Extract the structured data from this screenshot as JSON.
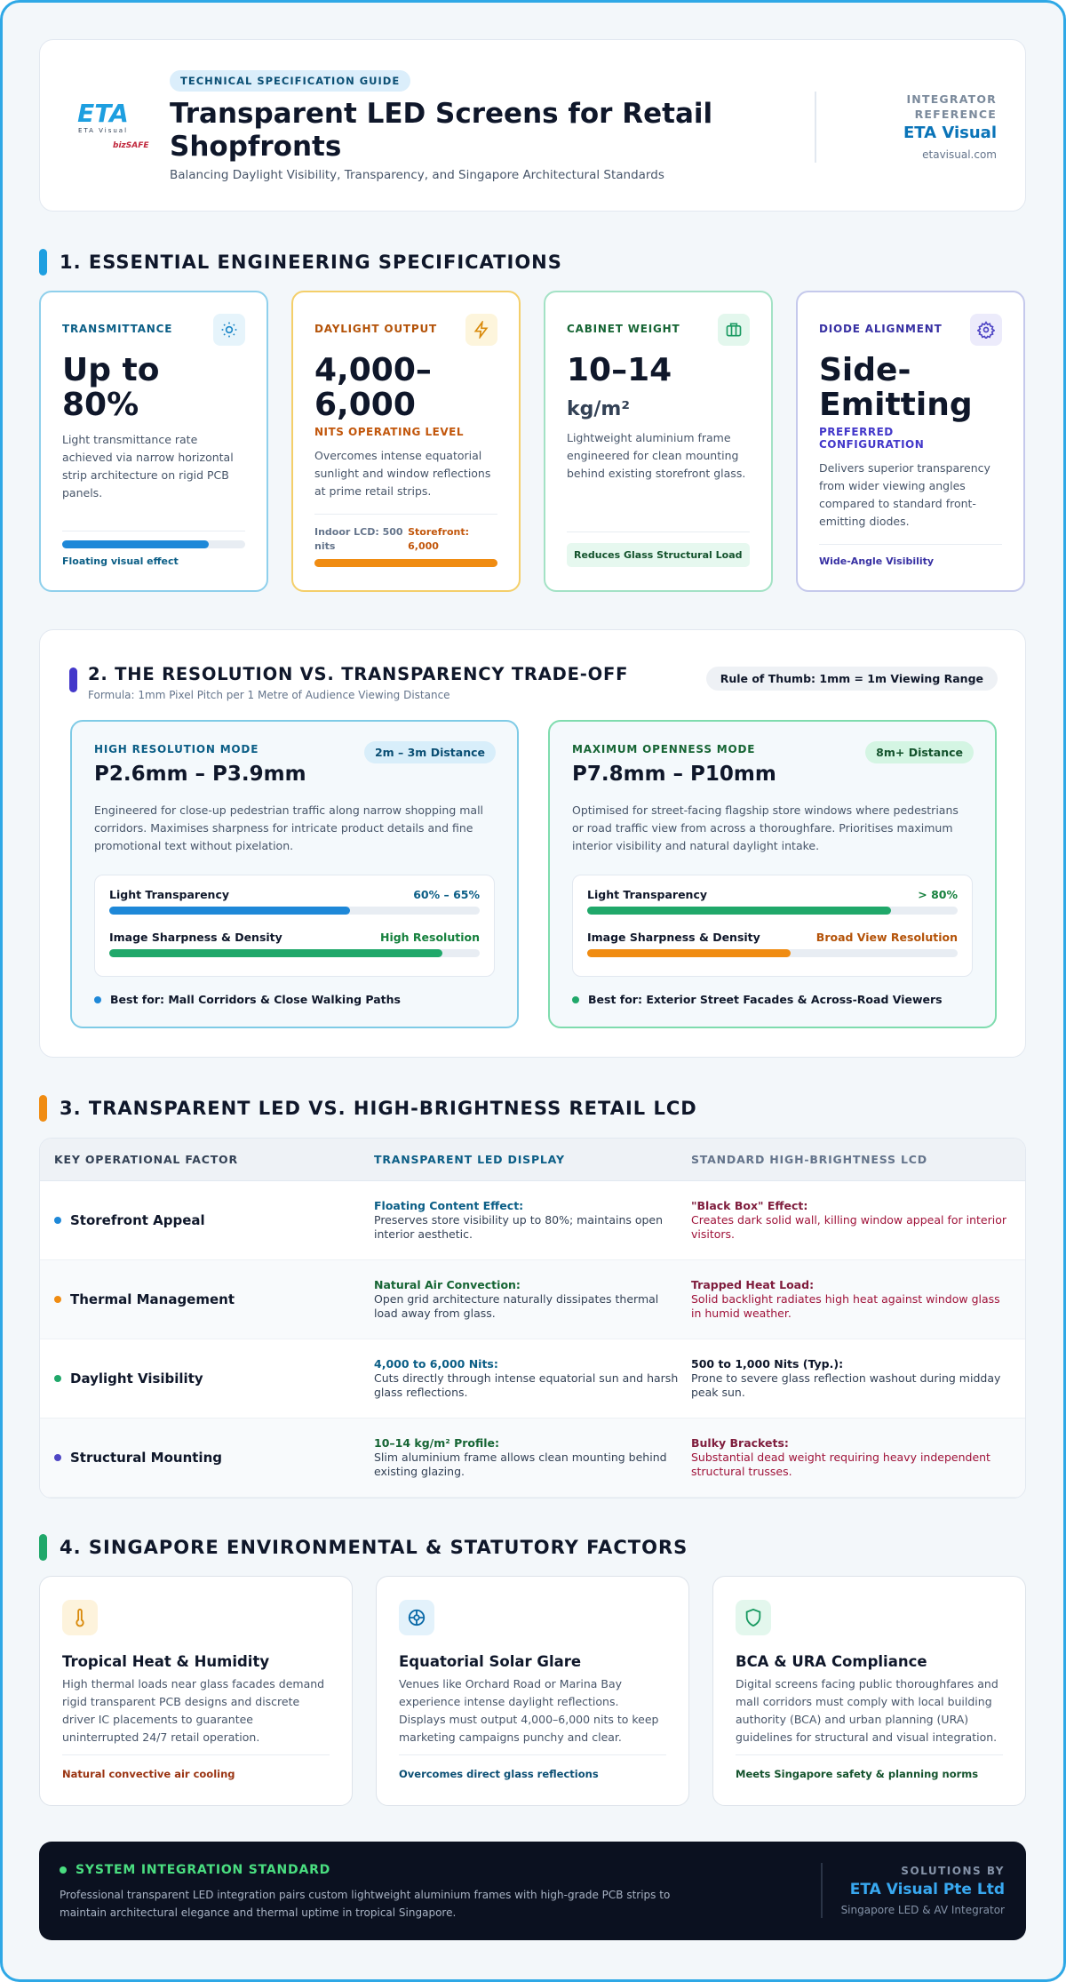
{
  "header": {
    "badge": "TECHNICAL SPECIFICATION GUIDE",
    "title": "Transparent LED Screens for Retail Shopfronts",
    "subtitle": "Balancing Daylight Visibility, Transparency, and Singapore Architectural Standards",
    "logo": {
      "brand": "ETA",
      "tagline": "ETA Visual",
      "mark": "bizSAFE"
    },
    "reference": {
      "label": "INTEGRATOR REFERENCE",
      "name": "ETA Visual",
      "url": "etavisual.com"
    }
  },
  "section1": {
    "heading": "1. ESSENTIAL ENGINEERING SPECIFICATIONS",
    "cards": [
      {
        "label": "TRANSMITTANCE",
        "value": "Up to 80%",
        "description": "Light transmittance rate achieved via narrow horizontal strip architecture on rigid PCB panels.",
        "footer": "Floating visual effect"
      },
      {
        "label": "DAYLIGHT OUTPUT",
        "value": "4,000–6,000",
        "sublabel": "NITS OPERATING LEVEL",
        "description": "Overcomes intense equatorial sunlight and window reflections at prime retail strips.",
        "compare": [
          "Indoor LCD: 500 nits",
          "Storefront: 6,000"
        ]
      },
      {
        "label": "CABINET WEIGHT",
        "value": "10–14",
        "unit": "kg/m²",
        "description": "Lightweight aluminium frame engineered for clean mounting behind existing storefront glass.",
        "footer": "Reduces Glass Structural Load"
      },
      {
        "label": "DIODE ALIGNMENT",
        "value": "Side-Emitting",
        "sublabel": "PREFERRED CONFIGURATION",
        "description": "Delivers superior transparency from wider viewing angles compared to standard front-emitting diodes.",
        "footer": "Wide-Angle Visibility"
      }
    ]
  },
  "section2": {
    "heading": "2. THE RESOLUTION VS. TRANSPARENCY TRADE-OFF",
    "formula": "Formula: 1mm Pixel Pitch per 1 Metre of Audience Viewing Distance",
    "rule": "Rule of Thumb: 1mm = 1m Viewing Range",
    "modes": [
      {
        "mode": "HIGH RESOLUTION MODE",
        "distance": "2m – 3m Distance",
        "range": "P2.6mm – P3.9mm",
        "description": "Engineered for close-up pedestrian traffic along narrow shopping mall corridors. Maximises sharpness for intricate product details and fine promotional text without pixelation.",
        "metrics": [
          {
            "name": "Light Transparency",
            "value": "60% – 65%"
          },
          {
            "name": "Image Sharpness & Density",
            "value": "High Resolution"
          }
        ],
        "best": "Best for: Mall Corridors & Close Walking Paths"
      },
      {
        "mode": "MAXIMUM OPENNESS MODE",
        "distance": "8m+ Distance",
        "range": "P7.8mm – P10mm",
        "description": "Optimised for street-facing flagship store windows where pedestrians or road traffic view from across a thoroughfare. Prioritises maximum interior visibility and natural daylight intake.",
        "metrics": [
          {
            "name": "Light Transparency",
            "value": "> 80%"
          },
          {
            "name": "Image Sharpness & Density",
            "value": "Broad View Resolution"
          }
        ],
        "best": "Best for: Exterior Street Facades & Across-Road Viewers"
      }
    ]
  },
  "section3": {
    "heading": "3. TRANSPARENT LED VS. HIGH-BRIGHTNESS RETAIL LCD",
    "columns": [
      "KEY OPERATIONAL FACTOR",
      "TRANSPARENT LED DISPLAY",
      "STANDARD HIGH-BRIGHTNESS LCD"
    ],
    "rows": [
      {
        "factor": "Storefront Appeal",
        "led": {
          "title": "Floating Content Effect:",
          "text": "Preserves store visibility up to 80%; maintains open interior aesthetic."
        },
        "lcd": {
          "title": "\"Black Box\" Effect:",
          "text": "Creates dark solid wall, killing window appeal for interior visitors."
        }
      },
      {
        "factor": "Thermal Management",
        "led": {
          "title": "Natural Air Convection:",
          "text": "Open grid architecture naturally dissipates thermal load away from glass."
        },
        "lcd": {
          "title": "Trapped Heat Load:",
          "text": "Solid backlight radiates high heat against window glass in humid weather."
        }
      },
      {
        "factor": "Daylight Visibility",
        "led": {
          "title": "4,000 to 6,000 Nits:",
          "text": "Cuts directly through intense equatorial sun and harsh glass reflections."
        },
        "lcd": {
          "title": "500 to 1,000 Nits (Typ.):",
          "text": "Prone to severe glass reflection washout during midday peak sun."
        }
      },
      {
        "factor": "Structural Mounting",
        "led": {
          "title": "10–14 kg/m² Profile:",
          "text": "Slim aluminium frame allows clean mounting behind existing glazing."
        },
        "lcd": {
          "title": "Bulky Brackets:",
          "text": "Substantial dead weight requiring heavy independent structural trusses."
        }
      }
    ]
  },
  "section4": {
    "heading": "4. SINGAPORE ENVIRONMENTAL & STATUTORY FACTORS",
    "cards": [
      {
        "title": "Tropical Heat & Humidity",
        "text": "High thermal loads near glass facades demand rigid transparent PCB designs and discrete driver IC placements to guarantee uninterrupted 24/7 retail operation.",
        "footer": "Natural convective air cooling"
      },
      {
        "title": "Equatorial Solar Glare",
        "text": "Venues like Orchard Road or Marina Bay experience intense daylight reflections. Displays must output 4,000–6,000 nits to keep marketing campaigns punchy and clear.",
        "footer": "Overcomes direct glass reflections"
      },
      {
        "title": "BCA & URA Compliance",
        "text": "Digital screens facing public thoroughfares and mall corridors must comply with local building authority (BCA) and urban planning (URA) guidelines for structural and visual integration.",
        "footer": "Meets Singapore safety & planning norms"
      }
    ]
  },
  "footer": {
    "label": "SYSTEM INTEGRATION STANDARD",
    "text": "Professional transparent LED integration pairs custom lightweight aluminium frames with high-grade PCB strips to maintain architectural elegance and thermal uptime in tropical Singapore.",
    "by_label": "SOLUTIONS BY",
    "company": "ETA Visual Pte Ltd",
    "tagline": "Singapore LED & AV Integrator"
  }
}
